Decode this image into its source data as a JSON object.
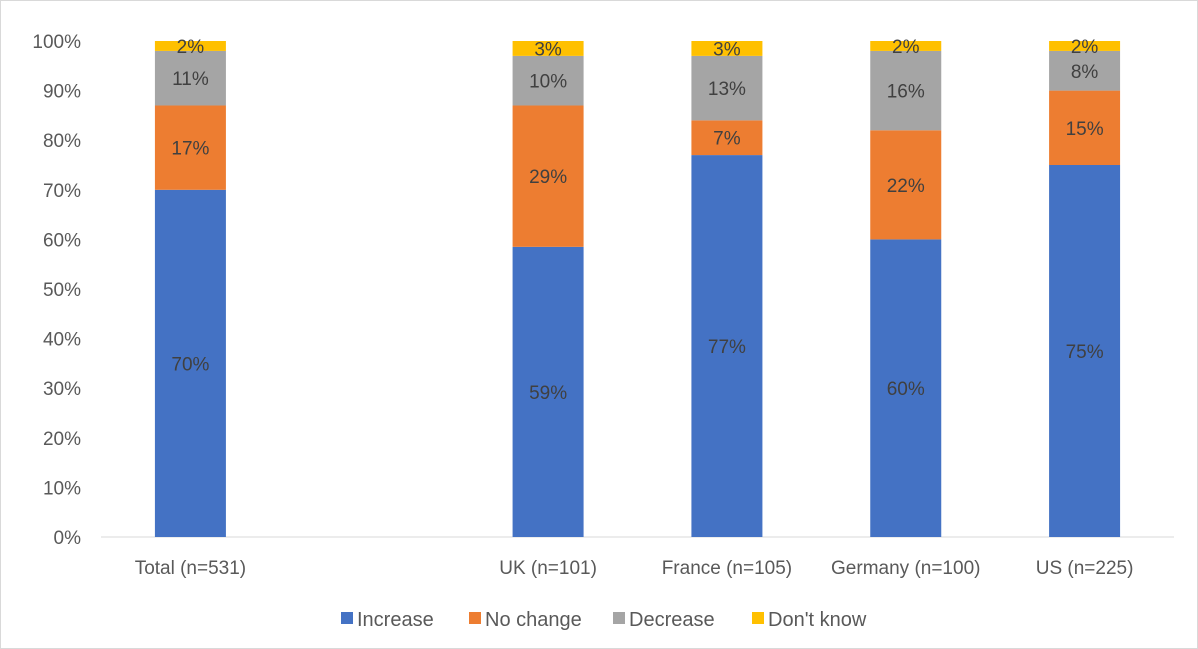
{
  "chart_data": {
    "type": "bar",
    "stacked": true,
    "percent_stacked": true,
    "categories": [
      "Total (n=531)",
      "",
      "UK (n=101)",
      "France (n=105)",
      "Germany (n=100)",
      "US (n=225)"
    ],
    "series": [
      {
        "name": "Increase",
        "color": "#4472C4",
        "values": [
          70,
          null,
          58.5,
          77,
          60,
          75
        ],
        "labels": [
          "70%",
          "",
          "59%",
          "77%",
          "60%",
          "75%"
        ]
      },
      {
        "name": "No change",
        "color": "#ED7D31",
        "values": [
          17,
          null,
          28.5,
          7,
          22,
          15
        ],
        "labels": [
          "17%",
          "",
          "29%",
          "7%",
          "22%",
          "15%"
        ]
      },
      {
        "name": "Decrease",
        "color": "#A5A5A5",
        "values": [
          11,
          null,
          10,
          13,
          16,
          8
        ],
        "labels": [
          "11%",
          "",
          "10%",
          "13%",
          "16%",
          "8%"
        ]
      },
      {
        "name": "Don't know",
        "color": "#FFC000",
        "values": [
          2,
          null,
          3,
          3,
          2,
          2
        ],
        "labels": [
          "2%",
          "",
          "3%",
          "3%",
          "2%",
          "2%"
        ]
      }
    ],
    "y_ticks": [
      "0%",
      "10%",
      "20%",
      "30%",
      "40%",
      "50%",
      "60%",
      "70%",
      "80%",
      "90%",
      "100%"
    ],
    "ylim": [
      0,
      100
    ],
    "grid": false,
    "legend": "bottom",
    "title": "",
    "xlabel": "",
    "ylabel": ""
  }
}
